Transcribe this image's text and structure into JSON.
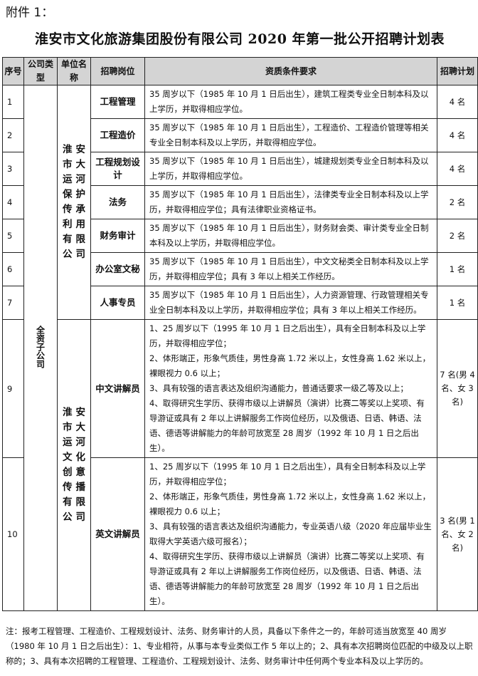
{
  "header": {
    "attachment": "附件 1：",
    "title": "淮安市文化旅游集团股份有限公司 2020 年第一批公开招聘计划表"
  },
  "columns": [
    "序号",
    "公司类型",
    "单位名称",
    "招聘岗位",
    "资质条件要求",
    "招聘计划"
  ],
  "company_type": "全资子公司",
  "units": [
    "淮安市大运河保护传承利用有限公司",
    "淮安市大运河文化创意传播有限公司"
  ],
  "rows": [
    {
      "no": "1",
      "position": "工程管理",
      "requirements": [
        "35 周岁以下（1985 年 10 月 1 日后出生），建筑工程类专业全日制本科及以上学历，并取得相应学位。"
      ],
      "count": "4 名"
    },
    {
      "no": "2",
      "position": "工程造价",
      "requirements": [
        "35 周岁以下（1985 年 10 月 1 日后出生），工程造价、工程造价管理等相关专业全日制本科及以上学历，并取得相应学位。"
      ],
      "count": "4 名"
    },
    {
      "no": "3",
      "position": "工程规划设计",
      "requirements": [
        "35 周岁以下（1985 年 10 月 1 日后出生），城建规划类专业全日制本科及以上学历，并取得相应学位。"
      ],
      "count": "4 名"
    },
    {
      "no": "4",
      "position": "法务",
      "requirements": [
        "35 周岁以下（1985 年 10 月 1 日后出生），法律类专业全日制本科及以上学历，并取得相应学位；具有法律职业资格证书。"
      ],
      "count": "2 名"
    },
    {
      "no": "5",
      "position": "财务审计",
      "requirements": [
        "35 周岁以下（1985 年 10 月 1 日后出生），财务财会类、审计类专业全日制本科及以上学历，并取得相应学位。"
      ],
      "count": "2 名"
    },
    {
      "no": "6",
      "position": "办公室文秘",
      "requirements": [
        "35 周岁以下（1985 年 10 月 1 日后出生），中文文秘类全日制本科及以上学历，并取得相应学位；具有 3 年以上相关工作经历。"
      ],
      "count": "1 名"
    },
    {
      "no": "7",
      "position": "人事专员",
      "requirements": [
        "35 周岁以下（1985 年 10 月 1 日后出生），人力资源管理、行政管理相关专业全日制本科及以上学历，并取得相应学位；具有 3 年以上相关工作经历。"
      ],
      "count": "1 名"
    },
    {
      "no": "9",
      "position": "中文讲解员",
      "requirements": [
        "1、25 周岁以下（1995 年 10 月 1 日之后出生），具有全日制本科及以上学历，并取得相应学位；",
        "2、体形端正，形象气质佳，男性身高 1.72 米以上，女性身高 1.62 米以上，裸眼视力 0.6 以上；",
        "3、具有较强的语言表达及组织沟通能力，普通话要求一级乙等及以上；",
        "4、取得研究生学历、获得市级以上讲解员（演讲）比赛二等奖以上奖项、有导游证或具有 2 年以上讲解服务工作岗位经历，以及俄语、日语、韩语、法语、德语等讲解能力的年龄可放宽至 28 周岁（1992 年 10 月 1 日之后出生）。"
      ],
      "count": "7 名(男 4 名、女 3 名)"
    },
    {
      "no": "10",
      "position": "英文讲解员",
      "requirements": [
        "1、25 周岁以下（1995 年 10 月 1 日之后出生），具有全日制本科及以上学历，并取得相应学位；",
        "2、体形端正，形象气质佳，男性身高 1.72 米以上，女性身高 1.62 米以上，裸眼视力 0.6 以上；",
        "3、具有较强的语言表达及组织沟通能力，专业英语八级（2020 年应届毕业生取得大学英语六级可报名）；",
        "4、取得研究生学历、获得市级以上讲解员（演讲）比赛二等奖以上奖项、有导游证或具有 2 年以上讲解服务工作岗位经历，以及俄语、日语、韩语、法语、德语等讲解能力的年龄可放宽至 28 周岁（1992 年 10 月 1 日之后出生）。"
      ],
      "count": "3 名(男 1 名、女 2 名)"
    }
  ],
  "note": "注：报考工程管理、工程造价、工程规划设计、法务、财务审计的人员，具备以下条件之一的，年龄可适当放宽至 40 周岁（1980 年 10 月 1 日之后出生）：1、专业相符，从事与本专业类似工作 5 年以上的；2、具有本次招聘岗位匹配的中级及以上职称的；3、具有本次招聘的工程管理、工程造价、工程规划设计、法务、财务审计中任何两个专业本科及以上学历的。"
}
